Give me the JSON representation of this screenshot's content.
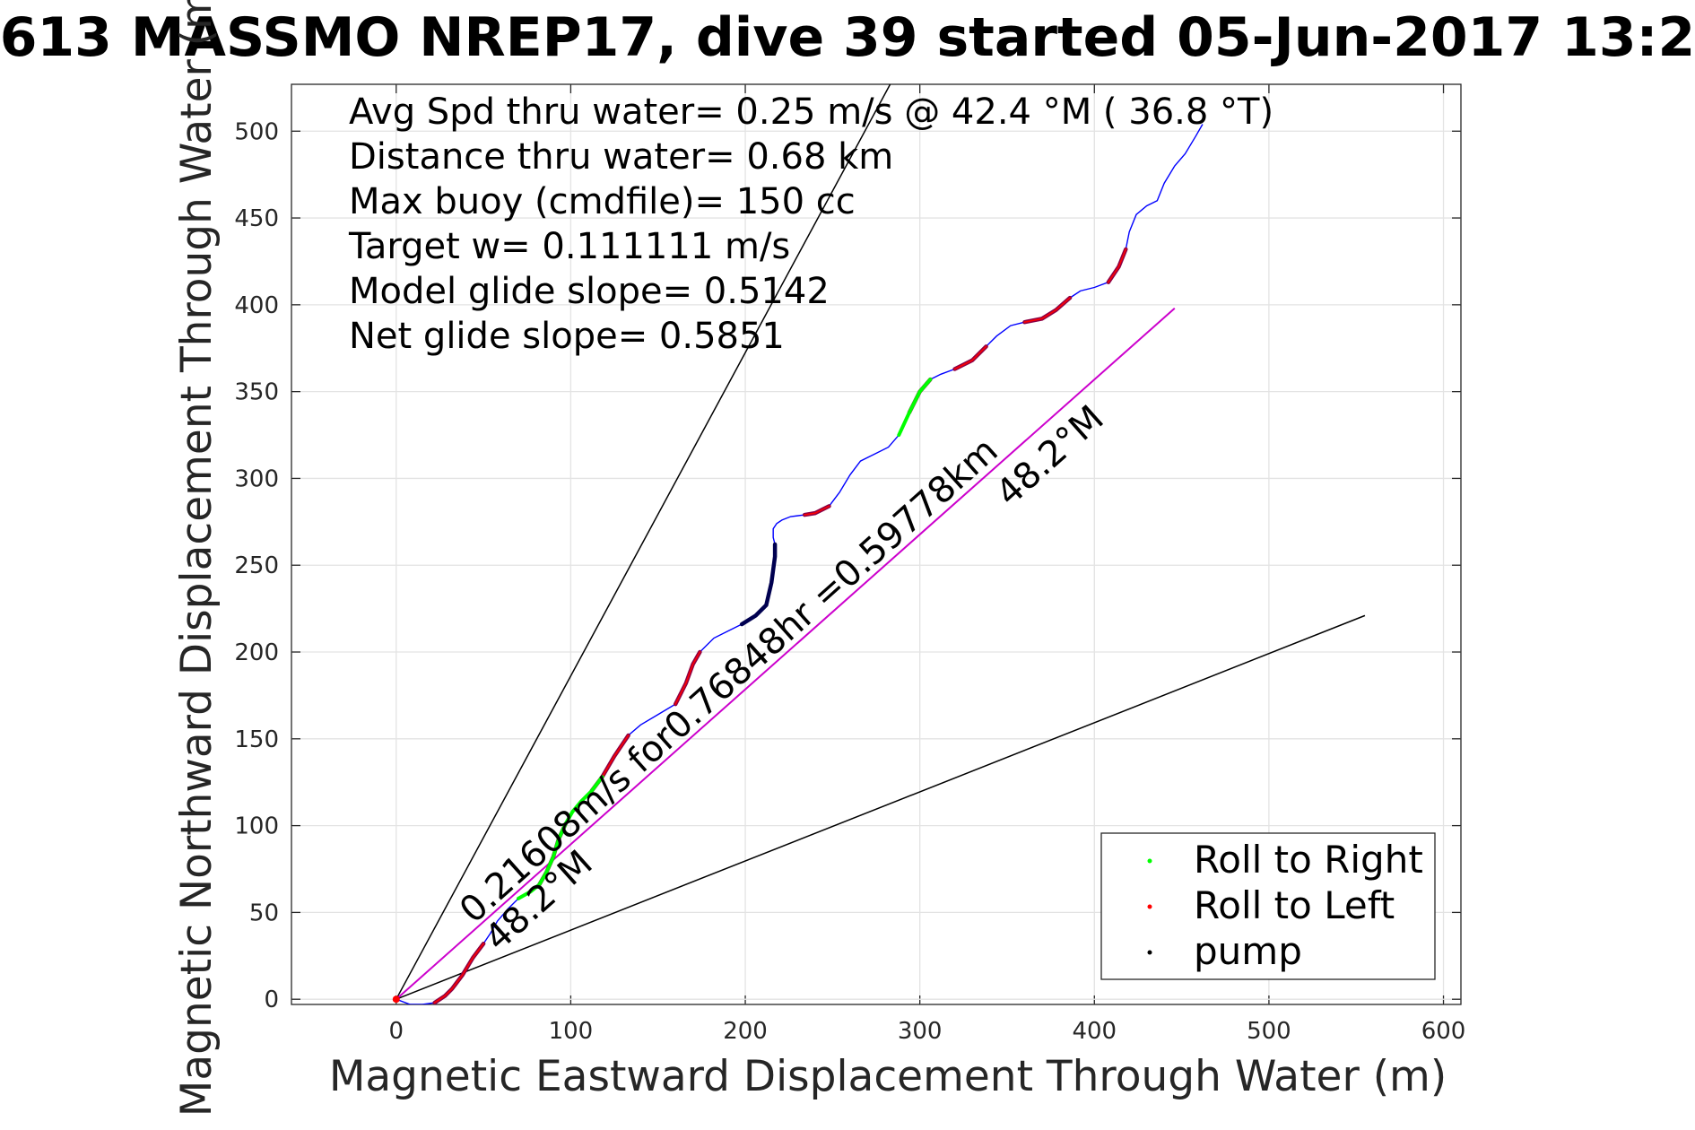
{
  "title": "613 MASSMO NREP17, dive 39 started 05-Jun-2017 13:2",
  "axes": {
    "xlabel": "Magnetic Eastward Displacement Through Water (m)",
    "ylabel": "Magnetic Northward Displacement Through Water (m)"
  },
  "info_lines": [
    "Avg Spd thru water=  0.25 m/s @  42.4 °M ( 36.8 °T)",
    "Distance thru water=  0.68 km",
    "Max buoy (cmdfile)= 150 cc",
    "Target w= 0.111111 m/s",
    "Model glide slope= 0.5142",
    "Net glide slope= 0.5851"
  ],
  "annotations": {
    "speed_text": "0.21608m/s for0.76848hr =0.59778km",
    "heading_near": "48.2°M",
    "heading_far": "48.2°M"
  },
  "legend": {
    "position": "bottom-right",
    "items": [
      {
        "label": "Roll to Right",
        "color": "#00ff00"
      },
      {
        "label": "Roll to Left",
        "color": "#ff0000"
      },
      {
        "label": "pump",
        "color": "#000000"
      }
    ]
  },
  "chart_data": {
    "type": "line",
    "title": "613 MASSMO NREP17, dive 39 started 05-Jun-2017 13:2",
    "xlabel": "Magnetic Eastward Displacement Through Water (m)",
    "ylabel": "Magnetic Northward Displacement Through Water (m)",
    "xlim": [
      -60,
      610
    ],
    "ylim": [
      -3,
      527
    ],
    "xticks": [
      0,
      100,
      200,
      300,
      400,
      500,
      600
    ],
    "yticks": [
      0,
      50,
      100,
      150,
      200,
      250,
      300,
      350,
      400,
      450,
      500
    ],
    "grid": true,
    "legend_position": "bottom-right",
    "colors": {
      "track": "#0000ff",
      "net": "#cc00cc",
      "guide": "#000000",
      "roll_right": "#00ff00",
      "roll_left": "#ff0000",
      "roll_left_dark": "#8b0045",
      "pump": "#000050"
    },
    "track": {
      "x": [
        0,
        8,
        15,
        22,
        28,
        32,
        38,
        44,
        50,
        54,
        58,
        64,
        70,
        77,
        82,
        86,
        90,
        93,
        97,
        101,
        106,
        112,
        118,
        125,
        133,
        140,
        150,
        160,
        166,
        170,
        174,
        178,
        182,
        190,
        198,
        206,
        212,
        215,
        217,
        217,
        216,
        216,
        218,
        221,
        226,
        234,
        240,
        248,
        254,
        260,
        266,
        274,
        282,
        288,
        294,
        300,
        306,
        312,
        320,
        330,
        338,
        344,
        352,
        360,
        370,
        378,
        386,
        392,
        400,
        408,
        414,
        418,
        420,
        424,
        430,
        436,
        440,
        446,
        452,
        458,
        462
      ],
      "y": [
        0,
        -3,
        -3,
        -2,
        2,
        6,
        14,
        24,
        32,
        38,
        45,
        52,
        58,
        62,
        66,
        73,
        82,
        92,
        101,
        108,
        114,
        120,
        128,
        140,
        152,
        158,
        164,
        170,
        182,
        193,
        200,
        204,
        208,
        212,
        216,
        221,
        227,
        240,
        255,
        262,
        266,
        271,
        274,
        276,
        278,
        279,
        280,
        284,
        292,
        302,
        310,
        314,
        318,
        325,
        338,
        350,
        357,
        360,
        363,
        368,
        376,
        382,
        388,
        390,
        392,
        397,
        404,
        408,
        410,
        413,
        422,
        432,
        442,
        452,
        457,
        460,
        470,
        480,
        487,
        497,
        504
      ]
    },
    "roll_right_segments": [
      [
        12,
        22
      ],
      [
        53,
        56
      ],
      [
        213,
        216
      ],
      [
        414,
        417
      ]
    ],
    "roll_left_segments": [
      [
        3,
        8
      ],
      [
        14,
        18
      ],
      [
        21,
        24
      ],
      [
        27,
        30
      ],
      [
        45,
        47
      ],
      [
        54,
        56
      ],
      [
        58,
        60
      ],
      [
        63,
        66
      ],
      [
        69,
        71
      ]
    ],
    "pump_segment": [
      34,
      39
    ],
    "net_line": {
      "x": [
        0,
        446
      ],
      "y": [
        0,
        398
      ]
    },
    "guide_lines": [
      {
        "x": [
          0,
          283
        ],
        "y": [
          0,
          527
        ]
      },
      {
        "x": [
          0,
          555
        ],
        "y": [
          0,
          221
        ]
      }
    ]
  }
}
